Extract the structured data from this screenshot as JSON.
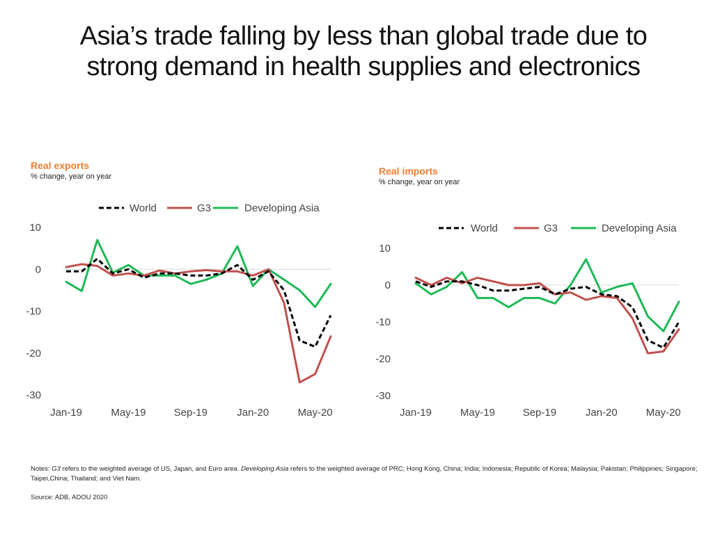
{
  "title_line1": "Asia’s trade falling by less than global trade due to",
  "title_line2": "strong demand in health supplies and electronics",
  "colors": {
    "world": "#000000",
    "g3": "#C0504D",
    "asia": "#1DB954",
    "accent": "#ED7D31"
  },
  "chart_data": [
    {
      "type": "line",
      "title": "Real exports",
      "subtitle": "% change, year on year",
      "xlabel": "",
      "ylabel": "",
      "ylim": [
        -30,
        10
      ],
      "yticks": [
        10,
        0,
        -10,
        -20,
        -30
      ],
      "ytick_labels": [
        "10",
        "0",
        "-10",
        "-20",
        "-30"
      ],
      "x": [
        "Jan-19",
        "Feb-19",
        "Mar-19",
        "Apr-19",
        "May-19",
        "Jun-19",
        "Jul-19",
        "Aug-19",
        "Sep-19",
        "Oct-19",
        "Nov-19",
        "Dec-19",
        "Jan-20",
        "Feb-20",
        "Mar-20",
        "Apr-20",
        "May-20",
        "Jun-20"
      ],
      "xtick_labels": [
        {
          "i": 0,
          "label": "Jan-19"
        },
        {
          "i": 4,
          "label": "May-19"
        },
        {
          "i": 8,
          "label": "Sep-19"
        },
        {
          "i": 12,
          "label": "Jan-20"
        },
        {
          "i": 16,
          "label": "May-20"
        }
      ],
      "legend_position": "top",
      "series": [
        {
          "key": "world",
          "name": "World",
          "style": "dashed",
          "values": [
            -0.5,
            -0.5,
            2.5,
            -1.0,
            0.0,
            -2.0,
            -1.0,
            -1.0,
            -1.5,
            -1.5,
            -1.0,
            1.0,
            -2.5,
            -0.5,
            -5.0,
            -17.0,
            -18.5,
            -11.0
          ]
        },
        {
          "key": "g3",
          "name": "G3",
          "style": "solid",
          "values": [
            0.5,
            1.2,
            0.8,
            -1.5,
            -1.0,
            -1.5,
            -0.3,
            -1.0,
            -0.5,
            -0.2,
            -0.5,
            -0.5,
            -1.5,
            0.0,
            -8.0,
            -27.0,
            -25.0,
            -16.0
          ]
        },
        {
          "key": "asia",
          "name": "Developing Asia",
          "style": "solid",
          "values": [
            -3.0,
            -5.2,
            7.0,
            -0.8,
            1.0,
            -1.5,
            -1.5,
            -1.5,
            -3.5,
            -2.5,
            -1.0,
            5.5,
            -4.0,
            0.0,
            -2.5,
            -5.0,
            -9.0,
            -3.5
          ]
        }
      ]
    },
    {
      "type": "line",
      "title": "Real imports",
      "subtitle": "% change, year on year",
      "xlabel": "",
      "ylabel": "",
      "ylim": [
        -30,
        10
      ],
      "yticks": [
        10,
        0,
        -10,
        -20,
        -30
      ],
      "ytick_labels": [
        "10",
        "0",
        "-10",
        "-20",
        "-30"
      ],
      "x": [
        "Jan-19",
        "Feb-19",
        "Mar-19",
        "Apr-19",
        "May-19",
        "Jun-19",
        "Jul-19",
        "Aug-19",
        "Sep-19",
        "Oct-19",
        "Nov-19",
        "Dec-19",
        "Jan-20",
        "Feb-20",
        "Mar-20",
        "Apr-20",
        "May-20",
        "Jun-20"
      ],
      "xtick_labels": [
        {
          "i": 0,
          "label": "Jan-19"
        },
        {
          "i": 4,
          "label": "May-19"
        },
        {
          "i": 8,
          "label": "Sep-19"
        },
        {
          "i": 12,
          "label": "Jan-20"
        },
        {
          "i": 16,
          "label": "May-20"
        }
      ],
      "legend_position": "top",
      "series": [
        {
          "key": "world",
          "name": "World",
          "style": "dashed",
          "values": [
            1.0,
            -0.5,
            1.0,
            1.0,
            0.0,
            -1.5,
            -1.5,
            -1.0,
            -0.5,
            -2.5,
            -1.0,
            -0.5,
            -2.5,
            -3.0,
            -6.0,
            -15.0,
            -17.0,
            -10.0
          ]
        },
        {
          "key": "g3",
          "name": "G3",
          "style": "solid",
          "values": [
            2.0,
            0.0,
            2.0,
            0.5,
            2.0,
            1.0,
            0.0,
            0.0,
            0.5,
            -2.5,
            -2.0,
            -4.0,
            -3.0,
            -3.5,
            -9.0,
            -18.5,
            -18.0,
            -12.0
          ]
        },
        {
          "key": "asia",
          "name": "Developing Asia",
          "style": "solid",
          "values": [
            0.5,
            -2.5,
            -0.5,
            3.5,
            -3.5,
            -3.5,
            -6.0,
            -3.5,
            -3.5,
            -5.0,
            0.0,
            7.0,
            -2.0,
            -0.5,
            0.5,
            -8.5,
            -12.5,
            -4.5
          ]
        }
      ]
    }
  ],
  "footer": {
    "notes_label": "Notes: ",
    "g3_term": "G3",
    "notes_part1": " refers to the weighted average of US, Japan, and Euro area.  ",
    "asia_term": "Developing Asia",
    "notes_part2": " refers to the weighted average of PRC; Hong Kong, China; India; Indonesia; Republic of Korea; Malaysia; Pakistan; Philippines; Singapore; Taipei,China; Thailand; and Viet Nam.",
    "source": "Source: ADB, ADOU 2020"
  }
}
